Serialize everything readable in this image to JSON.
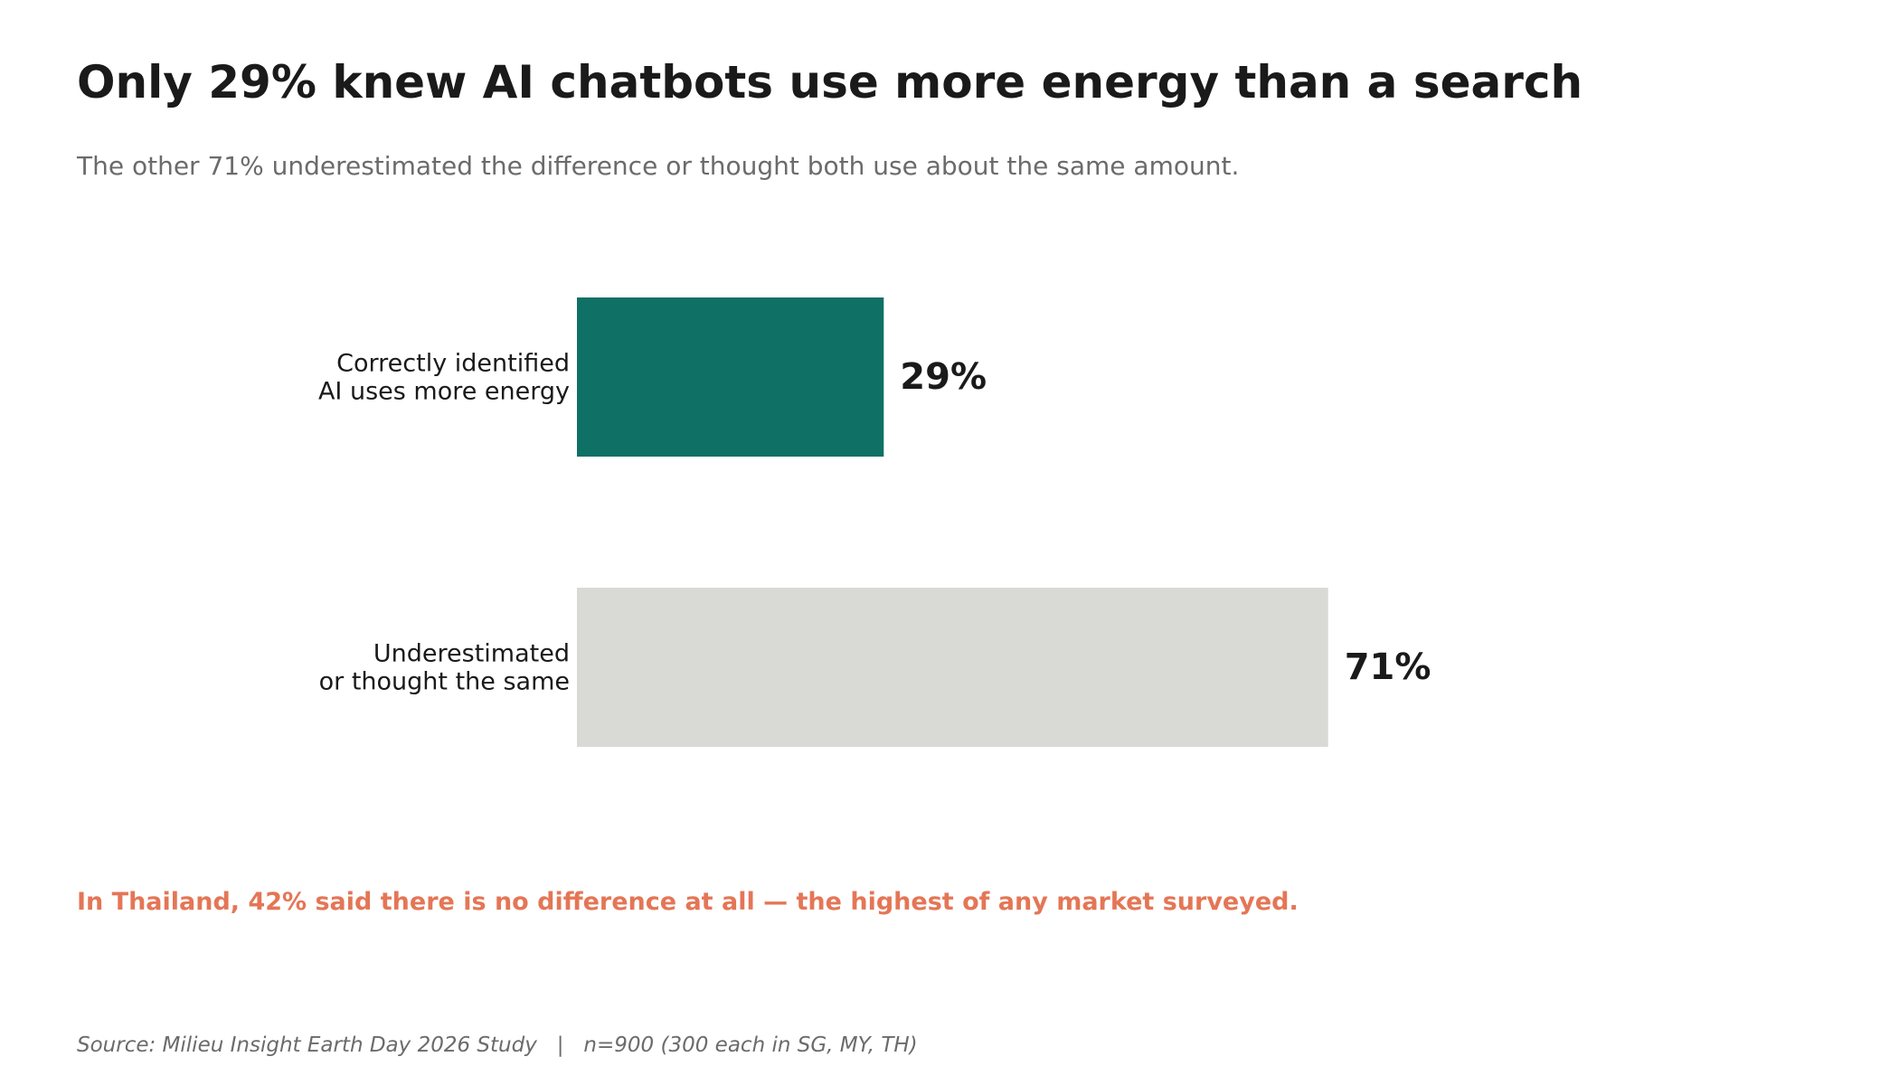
{
  "title": "Only 29% knew AI chatbots use more energy than a search",
  "subtitle": "The other 71% underestimated the difference or thought both use about the same amount.",
  "callout": "In Thailand, 42% said there is no difference at all — the highest of any market surveyed.",
  "source": "Source: Milieu Insight Earth Day 2026 Study   |   n=900 (300 each in SG, MY, TH)",
  "colors": {
    "accent": "#0f7065",
    "neutral": "#d9dad5",
    "callout": "#e47656",
    "text": "#1a1a1a",
    "muted": "#6b6b6b"
  },
  "chart_data": {
    "type": "bar",
    "orientation": "horizontal",
    "categories": [
      [
        "Correctly identified",
        "AI uses more energy"
      ],
      [
        "Underestimated",
        "or thought the same"
      ]
    ],
    "values": [
      29,
      71
    ],
    "value_labels": [
      "29%",
      "71%"
    ],
    "unit": "%",
    "xlim": [
      0,
      100
    ],
    "grid": false,
    "legend": "none"
  }
}
